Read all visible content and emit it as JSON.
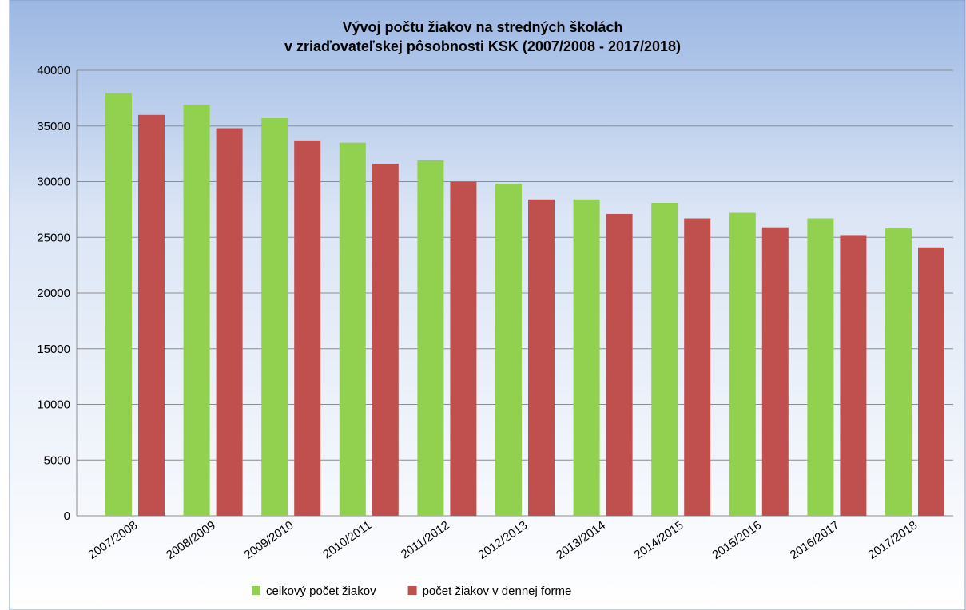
{
  "chart_data": {
    "type": "bar",
    "title": [
      "Vývoj počtu žiakov na stredných školách",
      "v zriaďovateľskej pôsobnosti  KSK (2007/2008 -  2017/2018)"
    ],
    "categories": [
      "2007/2008",
      "2008/2009",
      "2009/2010",
      "2010/2011",
      "2011/2012",
      "2012/2013",
      "2013/2014",
      "2014/2015",
      "2015/2016",
      "2016/2017",
      "2017/2018"
    ],
    "series": [
      {
        "name": "celkový počet žiakov",
        "color": "#92d050",
        "values": [
          37950,
          36900,
          35700,
          33500,
          31900,
          29800,
          28400,
          28100,
          27200,
          26700,
          25800
        ]
      },
      {
        "name": "počet žiakov v dennej forme",
        "color": "#c0504d",
        "values": [
          36000,
          34800,
          33700,
          31600,
          30000,
          28400,
          27100,
          26700,
          25900,
          25200,
          24100
        ]
      }
    ],
    "ylim": [
      0,
      40000
    ],
    "yticks": [
      0,
      5000,
      10000,
      15000,
      20000,
      25000,
      30000,
      35000,
      40000
    ],
    "grid": true,
    "legend": "bottom"
  }
}
